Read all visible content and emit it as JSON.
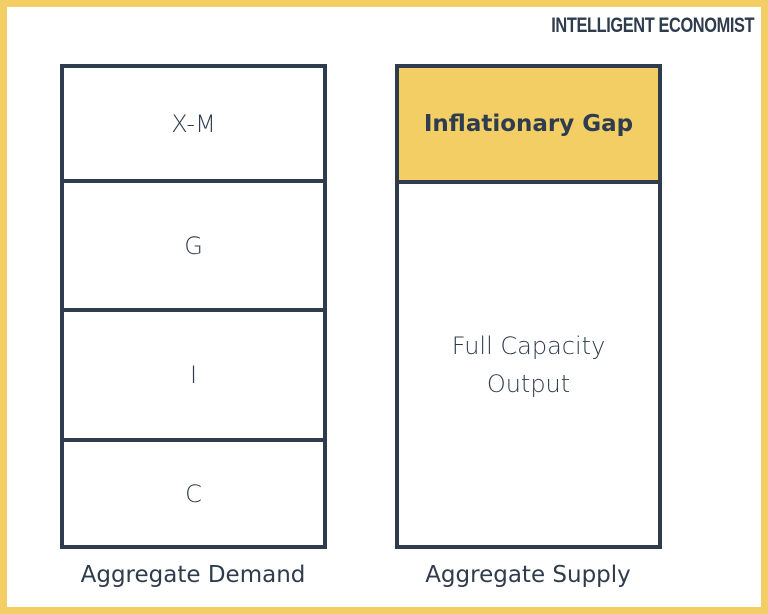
{
  "logo": "INTELLIGENT ECONOMIST",
  "aggregate_demand": {
    "label": "Aggregate Demand",
    "components": [
      "X-M",
      "G",
      "I",
      "C"
    ]
  },
  "aggregate_supply": {
    "label": "Aggregate Supply",
    "gap": "Inflationary Gap",
    "output_line1": "Full Capacity",
    "output_line2": "Output"
  },
  "colors": {
    "accent": "#F2CE65",
    "ink": "#2f3c4d"
  }
}
